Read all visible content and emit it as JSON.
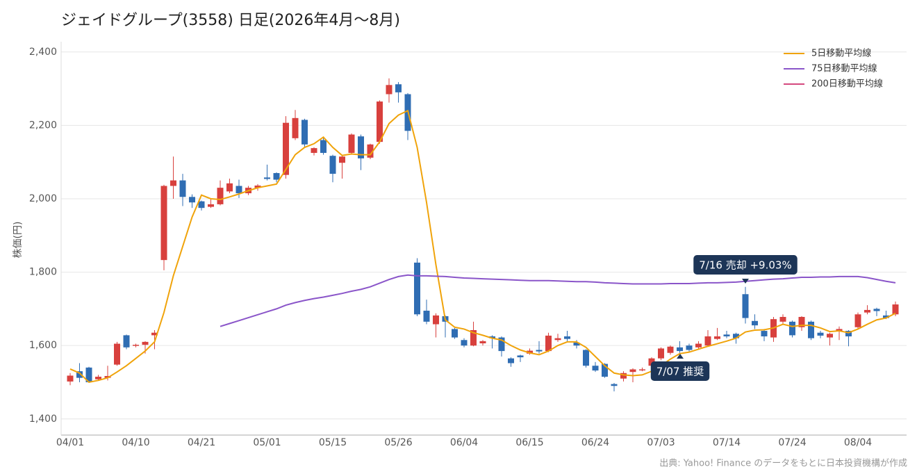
{
  "chart_data": {
    "type": "candlestick",
    "title": "ジェイドグループ(3558) 日足(2026年4月〜8月)",
    "y_label": "株価(円)",
    "source": "出典: Yahoo! Finance のデータをもとに日本投資機構が作成",
    "categories": [
      "04/01",
      null,
      null,
      null,
      null,
      null,
      null,
      "04/10",
      null,
      null,
      null,
      null,
      null,
      null,
      "04/21",
      null,
      null,
      null,
      null,
      null,
      null,
      "05/01",
      null,
      null,
      null,
      null,
      null,
      null,
      "05/15",
      null,
      null,
      null,
      null,
      null,
      null,
      "05/26",
      null,
      null,
      null,
      null,
      null,
      null,
      "06/04",
      null,
      null,
      null,
      null,
      null,
      null,
      "06/15",
      null,
      null,
      null,
      null,
      null,
      null,
      "06/24",
      null,
      null,
      null,
      null,
      null,
      null,
      "07/03",
      null,
      null,
      null,
      null,
      null,
      null,
      "07/14",
      null,
      null,
      null,
      null,
      null,
      null,
      "07/24",
      null,
      null,
      null,
      null,
      null,
      null,
      "08/04",
      null,
      null,
      null,
      null
    ],
    "open": [
      1502,
      1530,
      1540,
      1508,
      1512,
      1548,
      1628,
      1600,
      1602,
      1628,
      1833,
      2035,
      2050,
      2005,
      1993,
      1978,
      1985,
      2020,
      2035,
      2015,
      2030,
      2058,
      2070,
      2065,
      2165,
      2215,
      2125,
      2160,
      2117,
      2098,
      2125,
      2170,
      2112,
      2155,
      2285,
      2312,
      2285,
      1826,
      1695,
      1658,
      1680,
      1645,
      1615,
      1600,
      1606,
      1625,
      1622,
      1565,
      1573,
      1578,
      1588,
      1585,
      1615,
      1625,
      1608,
      1588,
      1545,
      1550,
      1495,
      1510,
      1528,
      1533,
      1545,
      1565,
      1580,
      1595,
      1600,
      1595,
      1600,
      1618,
      1630,
      1632,
      1740,
      1667,
      1640,
      1622,
      1665,
      1665,
      1650,
      1665,
      1635,
      1622,
      1640,
      1640,
      1650,
      1690,
      1700,
      1682,
      1685
    ],
    "high": [
      1525,
      1552,
      1542,
      1520,
      1545,
      1610,
      1630,
      1605,
      1612,
      1642,
      2038,
      2115,
      2068,
      2012,
      1995,
      2000,
      2050,
      2055,
      2052,
      2035,
      2040,
      2093,
      2072,
      2225,
      2242,
      2218,
      2140,
      2168,
      2120,
      2118,
      2178,
      2175,
      2150,
      2268,
      2328,
      2318,
      2288,
      1838,
      1725,
      1688,
      1682,
      1648,
      1620,
      1665,
      1615,
      1628,
      1625,
      1568,
      1575,
      1592,
      1612,
      1635,
      1632,
      1640,
      1615,
      1590,
      1555,
      1552,
      1498,
      1530,
      1538,
      1540,
      1568,
      1595,
      1600,
      1612,
      1605,
      1612,
      1642,
      1648,
      1640,
      1635,
      1760,
      1685,
      1645,
      1678,
      1685,
      1668,
      1680,
      1668,
      1640,
      1635,
      1652,
      1642,
      1690,
      1710,
      1703,
      1695,
      1720
    ],
    "low": [
      1492,
      1500,
      1498,
      1505,
      1505,
      1545,
      1590,
      1595,
      1578,
      1590,
      1805,
      2000,
      1980,
      1975,
      1968,
      1975,
      1982,
      2015,
      2002,
      2010,
      2022,
      2050,
      2045,
      2055,
      2160,
      2140,
      2118,
      2120,
      2045,
      2055,
      2120,
      2078,
      2108,
      2150,
      2262,
      2262,
      2160,
      1680,
      1658,
      1622,
      1622,
      1618,
      1595,
      1598,
      1600,
      1592,
      1570,
      1542,
      1555,
      1575,
      1578,
      1582,
      1610,
      1612,
      1592,
      1540,
      1528,
      1512,
      1475,
      1502,
      1500,
      1530,
      1540,
      1560,
      1575,
      1580,
      1583,
      1590,
      1598,
      1615,
      1620,
      1605,
      1660,
      1645,
      1612,
      1610,
      1660,
      1622,
      1640,
      1615,
      1620,
      1600,
      1615,
      1598,
      1645,
      1685,
      1680,
      1672,
      1680
    ],
    "close": [
      1518,
      1512,
      1500,
      1515,
      1517,
      1605,
      1595,
      1602,
      1610,
      1635,
      2035,
      2050,
      2005,
      1990,
      1975,
      1985,
      2030,
      2042,
      2015,
      2030,
      2036,
      2054,
      2052,
      2207,
      2220,
      2148,
      2138,
      2125,
      2068,
      2115,
      2175,
      2110,
      2148,
      2265,
      2310,
      2290,
      2185,
      1685,
      1665,
      1682,
      1665,
      1622,
      1600,
      1642,
      1612,
      1620,
      1585,
      1552,
      1568,
      1586,
      1584,
      1627,
      1620,
      1618,
      1600,
      1545,
      1532,
      1515,
      1490,
      1525,
      1535,
      1535,
      1565,
      1592,
      1597,
      1585,
      1588,
      1605,
      1625,
      1625,
      1625,
      1620,
      1675,
      1655,
      1625,
      1672,
      1678,
      1628,
      1678,
      1620,
      1627,
      1632,
      1645,
      1625,
      1685,
      1697,
      1694,
      1675,
      1712
    ],
    "up_color": "#d8403d",
    "down_color": "#2f6db3",
    "lines": [
      {
        "name": "5日移動平均線",
        "color": "#f0a30a",
        "values": [
          1536,
          1525,
          1500,
          1505,
          1512,
          1528,
          1545,
          1565,
          1585,
          1610,
          1690,
          1790,
          1870,
          1950,
          2010,
          2000,
          1998,
          2005,
          2013,
          2022,
          2030,
          2035,
          2040,
          2080,
          2120,
          2140,
          2150,
          2168,
          2140,
          2118,
          2122,
          2120,
          2120,
          2155,
          2205,
          2228,
          2240,
          2140,
          1990,
          1820,
          1670,
          1650,
          1645,
          1635,
          1628,
          1620,
          1615,
          1600,
          1588,
          1580,
          1575,
          1585,
          1600,
          1610,
          1610,
          1595,
          1570,
          1545,
          1525,
          1520,
          1518,
          1520,
          1530,
          1545,
          1563,
          1578,
          1582,
          1590,
          1598,
          1605,
          1612,
          1620,
          1637,
          1642,
          1643,
          1648,
          1658,
          1652,
          1655,
          1655,
          1648,
          1638,
          1640,
          1635,
          1645,
          1658,
          1670,
          1675,
          1688
        ]
      },
      {
        "name": "75日移動平均線",
        "color": "#8a55c9",
        "values": [
          null,
          null,
          null,
          null,
          null,
          null,
          null,
          null,
          null,
          null,
          null,
          null,
          null,
          null,
          null,
          null,
          1652,
          1660,
          1668,
          1676,
          1684,
          1692,
          1700,
          1710,
          1717,
          1723,
          1728,
          1732,
          1737,
          1742,
          1748,
          1753,
          1760,
          1770,
          1780,
          1788,
          1792,
          1790,
          1790,
          1789,
          1788,
          1786,
          1784,
          1783,
          1782,
          1781,
          1780,
          1779,
          1778,
          1777,
          1777,
          1777,
          1776,
          1775,
          1774,
          1774,
          1773,
          1771,
          1770,
          1769,
          1768,
          1768,
          1768,
          1768,
          1769,
          1769,
          1769,
          1770,
          1771,
          1771,
          1772,
          1773,
          1775,
          1777,
          1779,
          1781,
          1782,
          1784,
          1786,
          1786,
          1787,
          1787,
          1788,
          1788,
          1788,
          1785,
          1780,
          1775,
          1771
        ]
      },
      {
        "name": "200日移動平均線",
        "color": "#d4487e",
        "values": [
          null,
          null,
          null,
          null,
          null,
          null,
          null,
          null,
          null,
          null,
          null,
          null,
          null,
          null,
          null,
          null,
          null,
          null,
          null,
          null,
          null,
          null,
          null,
          null,
          null,
          null,
          null,
          null,
          null,
          null,
          null,
          null,
          null,
          null,
          null,
          null,
          null,
          null,
          null,
          null,
          null,
          null,
          null,
          null,
          null,
          null,
          null,
          null,
          null,
          null,
          null,
          null,
          null,
          null,
          null,
          null,
          null,
          null,
          null,
          null,
          null,
          null,
          null,
          null,
          null,
          null,
          null,
          null,
          null,
          null,
          null,
          null,
          null,
          null,
          null,
          null,
          null,
          null,
          null,
          null,
          null,
          null,
          null,
          null,
          null,
          null,
          null,
          null,
          null
        ]
      }
    ],
    "annotations": [
      {
        "text": "7/16 売却 +9.03%"
      },
      {
        "text": "7/07 推奨"
      }
    ],
    "ylim": [
      1356,
      2428
    ],
    "yticks": [
      {
        "value": 1400,
        "label": "1,400"
      },
      {
        "value": 1600,
        "label": "1,600"
      },
      {
        "value": 1800,
        "label": "1,800"
      },
      {
        "value": 2000,
        "label": "2,000"
      },
      {
        "value": 2200,
        "label": "2,200"
      },
      {
        "value": 2400,
        "label": "2,400"
      }
    ],
    "grid": true,
    "legend": "top-right"
  }
}
